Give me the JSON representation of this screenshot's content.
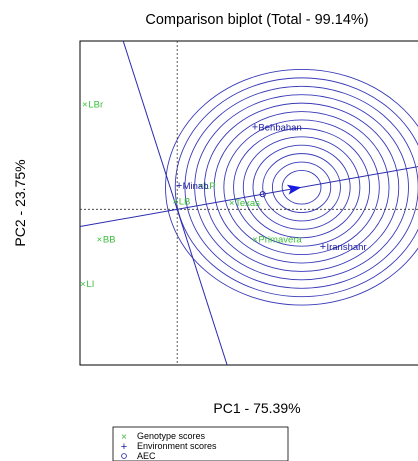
{
  "chart_data": {
    "type": "scatter",
    "title": "Comparison biplot (Total - 99.14%)",
    "xlabel": "PC1 - 75.39%",
    "ylabel": "PC2 - 23.75%",
    "xlim": [
      -1.0,
      2.55
    ],
    "ylim": [
      -1.85,
      2.0
    ],
    "grid": false,
    "legend_placement": "bottom-center",
    "aec_point": [
      0.88,
      0.18
    ],
    "aec_ring_radii": [
      0.2,
      0.3,
      0.4,
      0.5,
      0.6,
      0.7,
      0.8,
      0.9,
      1.0,
      1.1,
      1.2,
      1.3,
      1.4
    ],
    "aec_perpendicular_slope": -3.6,
    "series": [
      {
        "name": "Genotype scores",
        "marker": "x",
        "color": "#3cbf3c",
        "points": [
          {
            "label": "LBr",
            "x": -0.95,
            "y": 1.25
          },
          {
            "label": "LP",
            "x": 0.24,
            "y": 0.28
          },
          {
            "label": "LB",
            "x": -0.02,
            "y": 0.1
          },
          {
            "label": "Texas",
            "x": 0.56,
            "y": 0.08
          },
          {
            "label": "BB",
            "x": -0.8,
            "y": -0.35
          },
          {
            "label": "Primavera",
            "x": 0.8,
            "y": -0.35
          },
          {
            "label": "LI",
            "x": -0.97,
            "y": -0.88
          }
        ]
      },
      {
        "name": "Environment scores",
        "marker": "+",
        "color": "#1a1a9e",
        "points": [
          {
            "label": "Behbahan",
            "x": 0.8,
            "y": 0.98
          },
          {
            "label": "Minab",
            "x": 0.02,
            "y": 0.28
          },
          {
            "label": "Iranshahr",
            "x": 1.5,
            "y": -0.44
          }
        ]
      },
      {
        "name": "AEC",
        "marker": "o",
        "color": "#1a1a9e",
        "points": []
      }
    ]
  }
}
